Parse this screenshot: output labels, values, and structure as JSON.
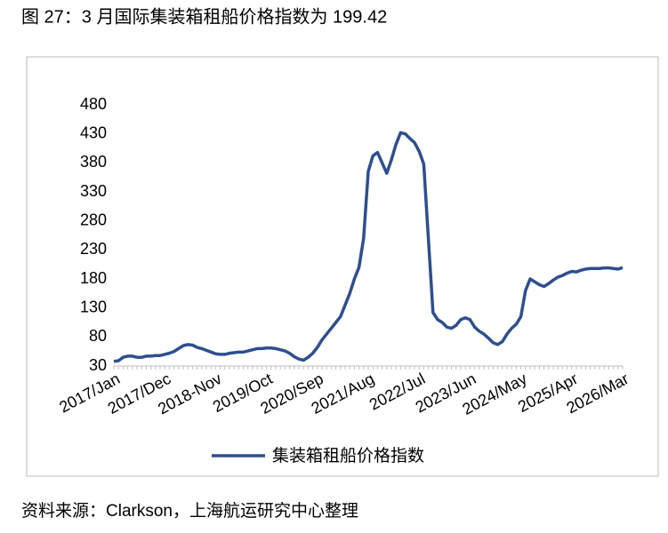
{
  "caption": "图 27：3 月国际集装箱租船价格指数为 199.42",
  "source": "资料来源：Clarkson，上海航运研究中心整理",
  "chart_data": {
    "type": "line",
    "categories": [
      "2017/Jan",
      null,
      null,
      null,
      null,
      null,
      null,
      null,
      null,
      null,
      null,
      "2017/Dec",
      null,
      null,
      null,
      null,
      null,
      null,
      null,
      null,
      null,
      null,
      "2018-Nov",
      null,
      null,
      null,
      null,
      null,
      null,
      null,
      null,
      null,
      null,
      "2019/Oct",
      null,
      null,
      null,
      null,
      null,
      null,
      null,
      null,
      null,
      null,
      "2020/Sep",
      null,
      null,
      null,
      null,
      null,
      null,
      null,
      null,
      null,
      null,
      "2021/Aug",
      null,
      null,
      null,
      null,
      null,
      null,
      null,
      null,
      null,
      null,
      "2022/Jul",
      null,
      null,
      null,
      null,
      null,
      null,
      null,
      null,
      null,
      null,
      "2023/Jun",
      null,
      null,
      null,
      null,
      null,
      null,
      null,
      null,
      null,
      null,
      "2024/May",
      null,
      null,
      null,
      null,
      null,
      null,
      null,
      null,
      null,
      null,
      "2025/Apr",
      null,
      null,
      null,
      null,
      null,
      null,
      null,
      null,
      null,
      null,
      "2026/Mar"
    ],
    "series": [
      {
        "name": "集装箱租船价格指数",
        "color": "#2e4e8f",
        "values": [
          38,
          39,
          45,
          47,
          47,
          45,
          45,
          47,
          47,
          48,
          48,
          50,
          52,
          55,
          60,
          65,
          67,
          66,
          62,
          60,
          57,
          54,
          51,
          50,
          50,
          52,
          53,
          54,
          54,
          56,
          58,
          60,
          60,
          61,
          61,
          60,
          58,
          56,
          52,
          46,
          42,
          40,
          45,
          52,
          62,
          75,
          85,
          95,
          105,
          115,
          135,
          155,
          180,
          200,
          250,
          365,
          392,
          398,
          380,
          362,
          385,
          412,
          432,
          430,
          422,
          415,
          400,
          378,
          250,
          122,
          110,
          105,
          97,
          95,
          100,
          110,
          113,
          110,
          97,
          90,
          85,
          78,
          70,
          67,
          72,
          85,
          95,
          102,
          115,
          160,
          180,
          175,
          170,
          167,
          172,
          178,
          183,
          186,
          190,
          193,
          192,
          195,
          197,
          198,
          198,
          198,
          199,
          199,
          198,
          197,
          199.42
        ]
      }
    ],
    "ylim": [
      30,
      480
    ],
    "yticks": [
      30,
      80,
      130,
      180,
      230,
      280,
      330,
      380,
      430,
      480
    ],
    "grid": false,
    "legend": "bottom"
  }
}
